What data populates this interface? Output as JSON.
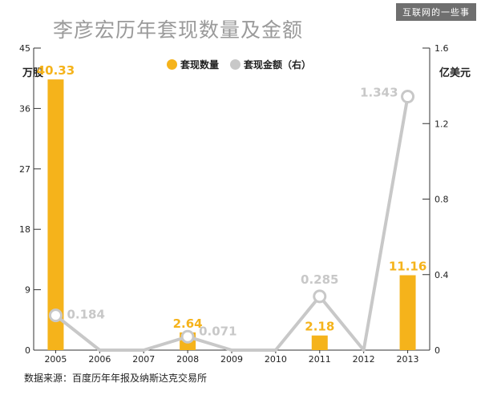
{
  "watermark": "互联网的一些事",
  "title": "李彦宏历年套现数量及金额",
  "left_unit": "万股",
  "right_unit": "亿美元",
  "source": "数据来源：百度历年年报及纳斯达克交易所",
  "colors": {
    "bar": "#f5b31b",
    "line": "#c8c8c8",
    "axis": "#333333"
  },
  "chart_data": {
    "type": "bar+line",
    "title": "李彦宏历年套现数量及金额",
    "categories": [
      "2005",
      "2006",
      "2007",
      "2008",
      "2009",
      "2010",
      "2011",
      "2012",
      "2013"
    ],
    "series": [
      {
        "name": "套现数量",
        "type": "bar",
        "axis": "left",
        "values": [
          40.33,
          0,
          0,
          2.64,
          0,
          0,
          2.18,
          0,
          11.16
        ],
        "labels": [
          "40.33",
          "",
          "",
          "2.64",
          "",
          "",
          "2.18",
          "",
          "11.16"
        ]
      },
      {
        "name": "套现金额（右）",
        "type": "line",
        "axis": "right",
        "values": [
          0.184,
          0,
          0,
          0.071,
          0,
          0,
          0.285,
          0,
          1.343
        ],
        "labels": [
          "0.184",
          "",
          "",
          "0.071",
          "",
          "",
          "0.285",
          "",
          "1.343"
        ]
      }
    ],
    "y_left": {
      "ticks": [
        "0",
        "9",
        "18",
        "27",
        "36",
        "45"
      ],
      "lim": [
        0,
        45
      ]
    },
    "y_right": {
      "ticks": [
        "0",
        "0.4",
        "0.8",
        "1.2",
        "1.6"
      ],
      "lim": [
        0,
        1.6
      ]
    },
    "legend": [
      "套现数量",
      "套现金额（右）"
    ],
    "legend_position": "top-center"
  }
}
